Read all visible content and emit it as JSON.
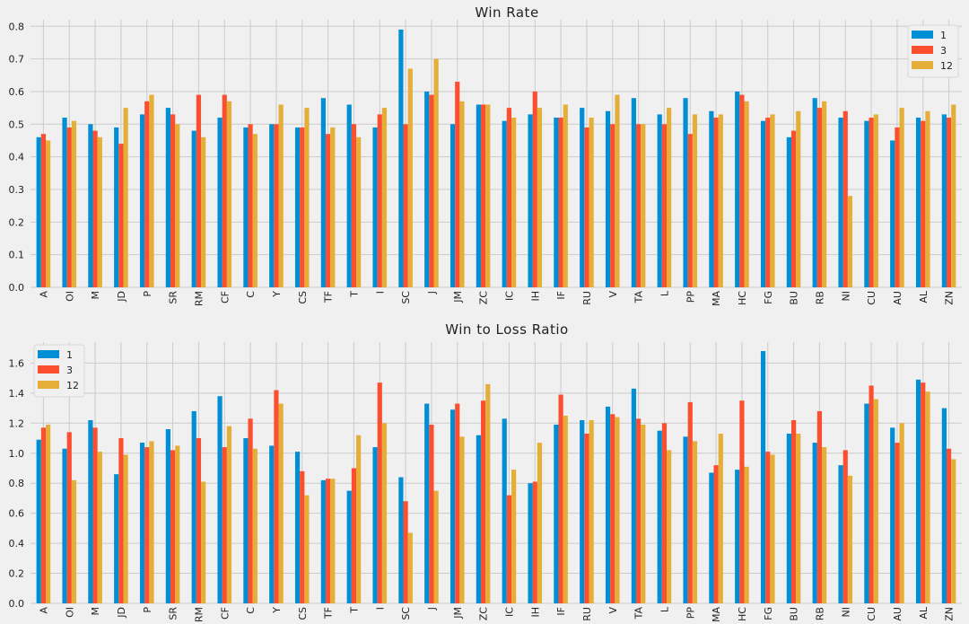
{
  "colors": {
    "series_1": "#008fd5",
    "series_3": "#fc4f30",
    "series_12": "#e5ae38",
    "background": "#f0f0f0",
    "grid": "#cbcbcb"
  },
  "chart_data": [
    {
      "type": "bar",
      "title": "Win Rate",
      "xlabel": "",
      "ylabel": "",
      "ylim": [
        0,
        0.82
      ],
      "yticks": [
        "0.0",
        "0.1",
        "0.2",
        "0.3",
        "0.4",
        "0.5",
        "0.6",
        "0.7",
        "0.8"
      ],
      "legend_position": "top-right",
      "categories": [
        "A",
        "OI",
        "M",
        "JD",
        "P",
        "SR",
        "RM",
        "CF",
        "C",
        "Y",
        "CS",
        "TF",
        "T",
        "I",
        "SC",
        "J",
        "JM",
        "ZC",
        "IC",
        "IH",
        "IF",
        "RU",
        "V",
        "TA",
        "L",
        "PP",
        "MA",
        "HC",
        "FG",
        "BU",
        "RB",
        "NI",
        "CU",
        "AU",
        "AL",
        "ZN"
      ],
      "series": [
        {
          "name": "1",
          "values": [
            0.46,
            0.52,
            0.5,
            0.49,
            0.53,
            0.55,
            0.48,
            0.52,
            0.49,
            0.5,
            0.49,
            0.58,
            0.56,
            0.49,
            0.79,
            0.6,
            0.5,
            0.56,
            0.51,
            0.53,
            0.52,
            0.55,
            0.54,
            0.58,
            0.53,
            0.58,
            0.54,
            0.6,
            0.51,
            0.46,
            0.58,
            0.52,
            0.51,
            0.45,
            0.52,
            0.53
          ]
        },
        {
          "name": "3",
          "values": [
            0.47,
            0.49,
            0.48,
            0.44,
            0.57,
            0.53,
            0.59,
            0.59,
            0.5,
            0.5,
            0.49,
            0.47,
            0.5,
            0.53,
            0.5,
            0.59,
            0.63,
            0.56,
            0.55,
            0.6,
            0.52,
            0.49,
            0.5,
            0.5,
            0.5,
            0.47,
            0.52,
            0.59,
            0.52,
            0.48,
            0.55,
            0.54,
            0.52,
            0.49,
            0.51,
            0.52
          ]
        },
        {
          "name": "12",
          "values": [
            0.45,
            0.51,
            0.46,
            0.55,
            0.59,
            0.5,
            0.46,
            0.57,
            0.47,
            0.56,
            0.55,
            0.49,
            0.46,
            0.55,
            0.67,
            0.7,
            0.57,
            0.56,
            0.52,
            0.55,
            0.56,
            0.52,
            0.59,
            0.5,
            0.55,
            0.53,
            0.53,
            0.57,
            0.53,
            0.54,
            0.57,
            0.28,
            0.53,
            0.55,
            0.54,
            0.56
          ]
        }
      ]
    },
    {
      "type": "bar",
      "title": "Win to Loss Ratio",
      "xlabel": "",
      "ylabel": "",
      "ylim": [
        0,
        1.74
      ],
      "yticks": [
        "0.0",
        "0.2",
        "0.4",
        "0.6",
        "0.8",
        "1.0",
        "1.2",
        "1.4",
        "1.6"
      ],
      "legend_position": "top-left",
      "categories": [
        "A",
        "OI",
        "M",
        "JD",
        "P",
        "SR",
        "RM",
        "CF",
        "C",
        "Y",
        "CS",
        "TF",
        "T",
        "I",
        "SC",
        "J",
        "JM",
        "ZC",
        "IC",
        "IH",
        "IF",
        "RU",
        "V",
        "TA",
        "L",
        "PP",
        "MA",
        "HC",
        "FG",
        "BU",
        "RB",
        "NI",
        "CU",
        "AU",
        "AL",
        "ZN"
      ],
      "series": [
        {
          "name": "1",
          "values": [
            1.09,
            1.03,
            1.22,
            0.86,
            1.07,
            1.16,
            1.28,
            1.38,
            1.1,
            1.05,
            1.01,
            0.82,
            0.75,
            1.04,
            0.84,
            1.33,
            1.29,
            1.12,
            1.23,
            0.8,
            1.19,
            1.22,
            1.31,
            1.43,
            1.15,
            1.11,
            0.87,
            0.89,
            1.68,
            1.13,
            1.07,
            0.92,
            1.33,
            1.17,
            1.49,
            1.3
          ]
        },
        {
          "name": "3",
          "values": [
            1.17,
            1.14,
            1.17,
            1.1,
            1.04,
            1.02,
            1.1,
            1.04,
            1.23,
            1.42,
            0.88,
            0.83,
            0.9,
            1.47,
            0.68,
            1.19,
            1.33,
            1.35,
            0.72,
            0.81,
            1.39,
            1.13,
            1.26,
            1.23,
            1.2,
            1.34,
            0.92,
            1.35,
            1.01,
            1.22,
            1.28,
            1.02,
            1.45,
            1.07,
            1.47,
            1.03
          ]
        },
        {
          "name": "12",
          "values": [
            1.19,
            0.82,
            1.01,
            0.99,
            1.08,
            1.05,
            0.81,
            1.18,
            1.03,
            1.33,
            0.72,
            0.83,
            1.12,
            1.2,
            0.47,
            0.75,
            1.11,
            1.46,
            0.89,
            1.07,
            1.25,
            1.22,
            1.24,
            1.19,
            1.02,
            1.08,
            1.13,
            0.91,
            0.99,
            1.13,
            1.04,
            0.85,
            1.36,
            1.2,
            1.41,
            0.96
          ]
        }
      ]
    }
  ]
}
